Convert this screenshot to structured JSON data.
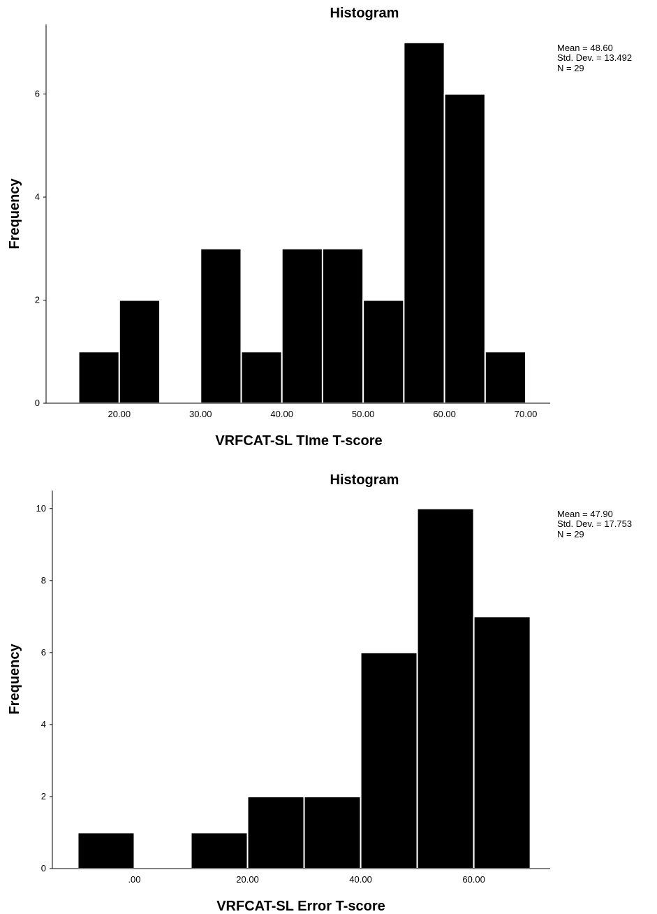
{
  "chart_data": [
    {
      "type": "bar",
      "title": "Histogram",
      "xlabel": "VRFCAT-SL TIme T-score",
      "ylabel": "Frequency",
      "bin_width": 5,
      "bins": [
        15,
        20,
        25,
        30,
        35,
        40,
        45,
        50,
        55,
        60,
        65
      ],
      "values": [
        1,
        2,
        0,
        3,
        1,
        3,
        3,
        2,
        7,
        6,
        1
      ],
      "xlim": [
        11,
        73
      ],
      "ylim": [
        0,
        7.35
      ],
      "x_ticks": [
        "20.00",
        "30.00",
        "40.00",
        "50.00",
        "60.00",
        "70.00"
      ],
      "x_tick_values": [
        20,
        30,
        40,
        50,
        60,
        70
      ],
      "y_ticks": [
        "0",
        "2",
        "4",
        "6"
      ],
      "y_tick_values": [
        0,
        2,
        4,
        6
      ],
      "stats": [
        "Mean = 48.60",
        "Std. Dev. = 13.492",
        "N = 29"
      ],
      "grid": false
    },
    {
      "type": "bar",
      "title": "Histogram",
      "xlabel": "VRFCAT-SL Error T-score",
      "ylabel": "Frequency",
      "bin_width": 10,
      "bins": [
        -10,
        0,
        10,
        20,
        30,
        40,
        50,
        60
      ],
      "values": [
        1,
        0,
        1,
        2,
        2,
        6,
        10,
        7
      ],
      "xlim": [
        -14.5,
        73.5
      ],
      "ylim": [
        0,
        10.5
      ],
      "x_ticks": [
        ".00",
        "20.00",
        "40.00",
        "60.00"
      ],
      "x_tick_values": [
        0,
        20,
        40,
        60
      ],
      "y_ticks": [
        "0",
        "2",
        "4",
        "6",
        "8",
        "10"
      ],
      "y_tick_values": [
        0,
        2,
        4,
        6,
        8,
        10
      ],
      "stats": [
        "Mean = 47.90",
        "Std. Dev. = 17.753",
        "N = 29"
      ],
      "grid": false
    }
  ]
}
